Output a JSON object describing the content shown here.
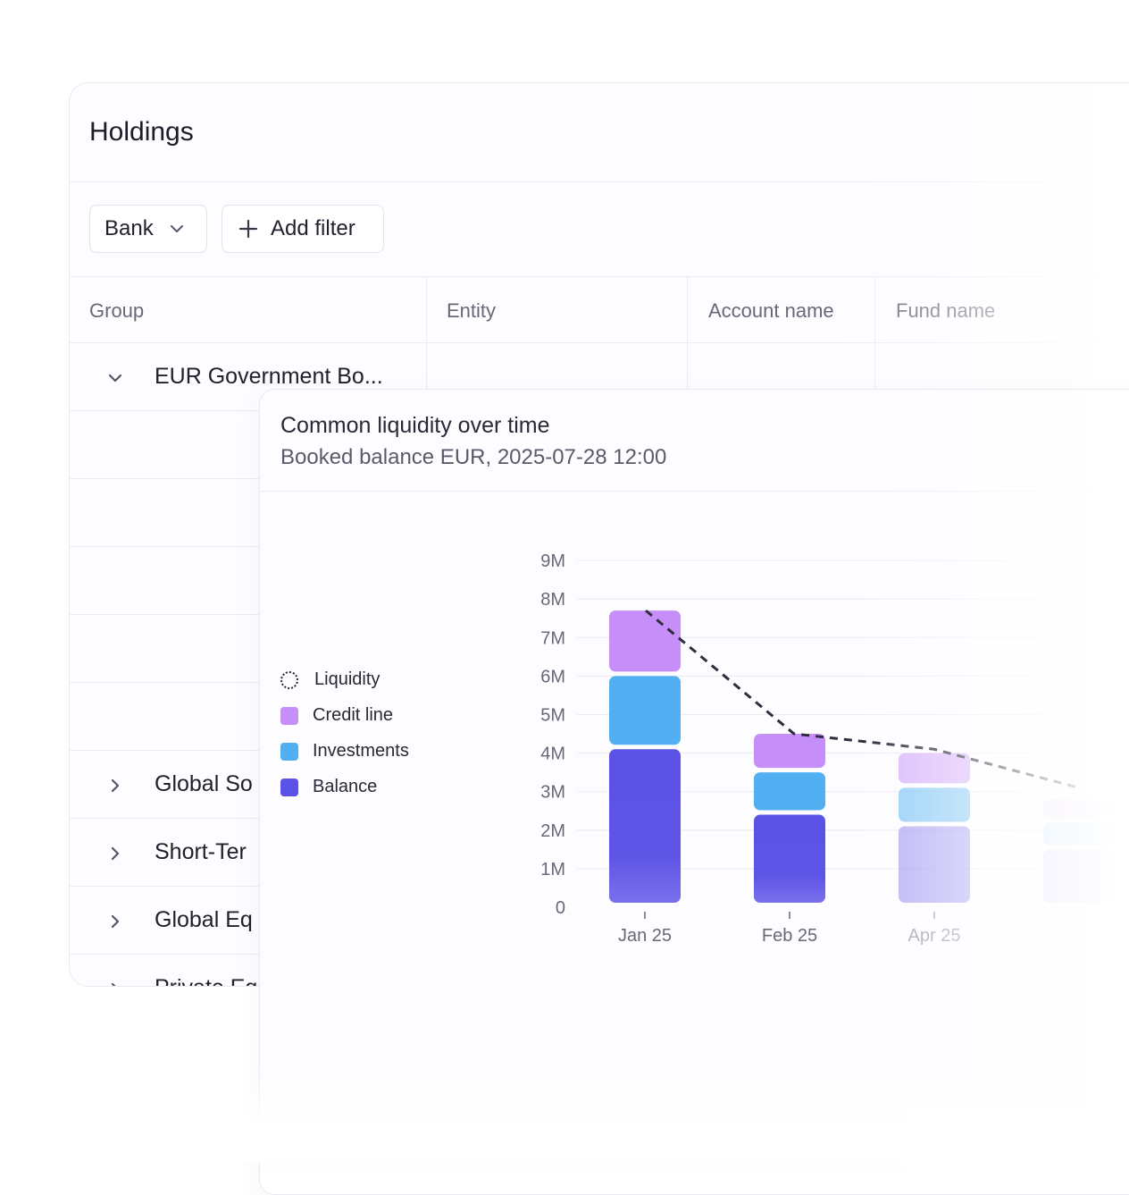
{
  "holdings": {
    "title": "Holdings",
    "filters": {
      "bank_label": "Bank",
      "add_filter_label": "Add filter"
    },
    "columns": [
      "Group",
      "Entity",
      "Account name",
      "Fund name"
    ],
    "groups": [
      {
        "label": "EUR Government Bo...",
        "expanded": true
      },
      {
        "label": "Global So",
        "expanded": false
      },
      {
        "label": "Short-Ter",
        "expanded": false
      },
      {
        "label": "Global Eq",
        "expanded": false
      },
      {
        "label": "Private Eq",
        "expanded": false
      }
    ]
  },
  "chart_card": {
    "title": "Common liquidity over time",
    "subtitle": "Booked balance EUR, 2025-07-28 12:00",
    "legend": [
      {
        "label": "Liquidity",
        "style": "dotted-circle"
      },
      {
        "label": "Credit line",
        "color": "#c58ef8"
      },
      {
        "label": "Investments",
        "color": "#52b0f2"
      },
      {
        "label": "Balance",
        "color": "#5b52e6"
      }
    ]
  },
  "chart_data": {
    "type": "bar",
    "stacked": true,
    "categories": [
      "Jan 25",
      "Feb 25",
      "Apr 25",
      ""
    ],
    "series": [
      {
        "name": "Balance",
        "values": [
          4.1,
          2.4,
          2.1,
          1.5
        ],
        "color": "#5b52e6"
      },
      {
        "name": "Investments",
        "values": [
          1.9,
          1.1,
          1.0,
          0.7
        ],
        "color": "#52b0f2"
      },
      {
        "name": "Credit line",
        "values": [
          1.7,
          1.0,
          0.9,
          0.6
        ],
        "color": "#c58ef8"
      },
      {
        "name": "Liquidity",
        "type": "line",
        "style": "dashed",
        "values": [
          7.7,
          4.5,
          4.1,
          3.1
        ]
      }
    ],
    "y_ticks": [
      "0",
      "1M",
      "2M",
      "3M",
      "4M",
      "5M",
      "6M",
      "7M",
      "8M",
      "9M"
    ],
    "ylim": [
      0,
      9
    ],
    "grid": true
  }
}
